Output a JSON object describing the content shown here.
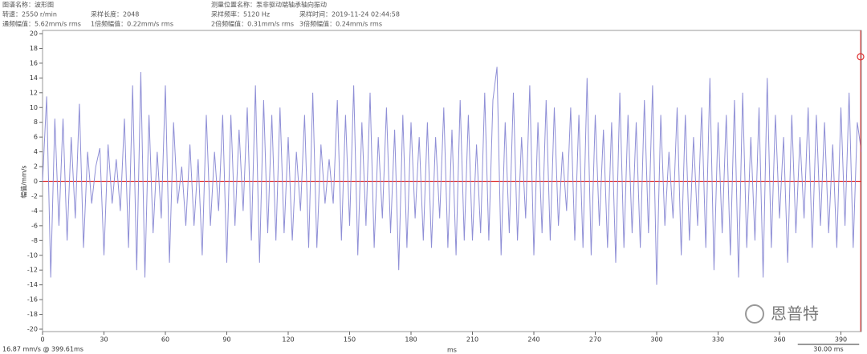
{
  "chart_data": {
    "type": "line",
    "header": [
      [
        {
          "text": "图谱名称：波形图",
          "col": 0
        },
        {
          "text": "测量位置名称：泵非驱动端轴承轴向振动",
          "col": 2
        }
      ],
      [
        {
          "text": "转速：2550 r/min",
          "col": 0
        },
        {
          "text": "采样长度：2048",
          "col": 1
        },
        {
          "text": "采样频率：5120 Hz",
          "col": 2
        },
        {
          "text": "采样时间：2019-11-24 02:44:58",
          "col": 3
        }
      ],
      [
        {
          "text": "通频幅值：5.62mm/s rms",
          "col": 0
        },
        {
          "text": "1倍频幅值：0.22mm/s rms",
          "col": 1
        },
        {
          "text": "2倍频幅值：0.31mm/s rms",
          "col": 2
        },
        {
          "text": "3倍频幅值：0.24mm/s rms",
          "col": 3
        }
      ]
    ],
    "y_label": "幅值/mm/s",
    "x_label": "ms",
    "color": "#8f8fd6",
    "reference_line": 0,
    "reference_color": "#e03030",
    "xlim": [
      0,
      400
    ],
    "ylim": [
      -20,
      20
    ],
    "xticks": [
      0,
      30,
      60,
      90,
      120,
      150,
      180,
      210,
      240,
      270,
      300,
      330,
      360,
      390
    ],
    "yticks": [
      -20,
      -18,
      -16,
      -14,
      -12,
      -10,
      -8,
      -6,
      -4,
      -2,
      0,
      2,
      4,
      6,
      8,
      10,
      12,
      14,
      16,
      18,
      20
    ],
    "x": [
      0,
      2,
      4,
      6,
      8,
      10,
      12,
      14,
      16,
      18,
      20,
      22,
      24,
      26,
      28,
      30,
      32,
      34,
      36,
      38,
      40,
      42,
      44,
      46,
      48,
      50,
      52,
      54,
      56,
      58,
      60,
      62,
      64,
      66,
      68,
      70,
      72,
      74,
      76,
      78,
      80,
      82,
      84,
      86,
      88,
      90,
      92,
      94,
      96,
      98,
      100,
      102,
      104,
      106,
      108,
      110,
      112,
      114,
      116,
      118,
      120,
      122,
      124,
      126,
      128,
      130,
      132,
      134,
      136,
      138,
      140,
      142,
      144,
      146,
      148,
      150,
      152,
      154,
      156,
      158,
      160,
      162,
      164,
      166,
      168,
      170,
      172,
      174,
      176,
      178,
      180,
      182,
      184,
      186,
      188,
      190,
      192,
      194,
      196,
      198,
      200,
      202,
      204,
      206,
      208,
      210,
      212,
      214,
      216,
      218,
      220,
      222,
      224,
      226,
      228,
      230,
      232,
      234,
      236,
      238,
      240,
      242,
      244,
      246,
      248,
      250,
      252,
      254,
      256,
      258,
      260,
      262,
      264,
      266,
      268,
      270,
      272,
      274,
      276,
      278,
      280,
      282,
      284,
      286,
      288,
      290,
      292,
      294,
      296,
      298,
      300,
      302,
      304,
      306,
      308,
      310,
      312,
      314,
      316,
      318,
      320,
      322,
      324,
      326,
      328,
      330,
      332,
      334,
      336,
      338,
      340,
      342,
      344,
      346,
      348,
      350,
      352,
      354,
      356,
      358,
      360,
      362,
      364,
      366,
      368,
      370,
      372,
      374,
      376,
      378,
      380,
      382,
      384,
      386,
      388,
      390,
      392,
      394,
      396,
      398,
      400
    ],
    "values": [
      0,
      11.5,
      -13,
      8.5,
      -6,
      8.5,
      -8,
      6,
      -5,
      10.5,
      -9,
      4,
      -3,
      2,
      4.5,
      -10,
      5,
      -3,
      3,
      -4,
      8.5,
      -9,
      13,
      -12,
      14.8,
      -13,
      9,
      -7,
      4,
      -5,
      13,
      -11,
      8,
      -3,
      2,
      -6,
      5,
      -6,
      3,
      -10,
      9,
      -6,
      4,
      -4,
      9,
      -11,
      9,
      -6,
      7,
      -4,
      10,
      -8,
      13,
      -11,
      11,
      -7,
      9,
      -8,
      10,
      -7,
      6,
      -8,
      4,
      -4,
      9,
      -9,
      12,
      -9,
      5,
      -3,
      3,
      -3,
      11,
      -8,
      9,
      -6,
      13,
      -10,
      8,
      -6,
      12,
      -9,
      6,
      -5,
      10,
      -7,
      7,
      -12,
      9,
      -9,
      8,
      -5,
      6,
      -8,
      8,
      -9,
      6,
      -5,
      10,
      -9,
      7,
      -10,
      11,
      -8,
      9,
      -8,
      5,
      -7,
      12,
      -8,
      11,
      15.5,
      -10,
      8,
      -7,
      12,
      -8,
      6,
      -5,
      13,
      -10,
      8,
      -7,
      11,
      -8,
      10,
      -6,
      4,
      -4,
      10,
      -8,
      9,
      -9,
      14,
      -10,
      9,
      -6,
      7,
      -9,
      8,
      -11,
      12,
      -9,
      9,
      -7,
      8,
      -9,
      11,
      -7,
      13,
      -14,
      9,
      -6,
      4,
      -5,
      10,
      -10,
      9,
      -8,
      6,
      -6,
      10,
      -9,
      14,
      -12,
      8,
      -7,
      9,
      -10,
      11,
      -13,
      12,
      -9,
      6,
      -8,
      10,
      -13,
      14,
      -9,
      9,
      -5,
      6,
      -11,
      9,
      -7,
      6,
      -5,
      10,
      -9,
      9,
      -6,
      8,
      -7,
      5,
      -9,
      10,
      -6,
      12,
      -9,
      8,
      4
    ],
    "cursor": {
      "x": 399.61,
      "y": 16.87,
      "label": "16.87 mm/s @ 399.61ms",
      "color": "#e03030"
    },
    "scale_bar": {
      "value": 30,
      "label": "30.00 ms"
    },
    "watermark": "恩普特"
  }
}
